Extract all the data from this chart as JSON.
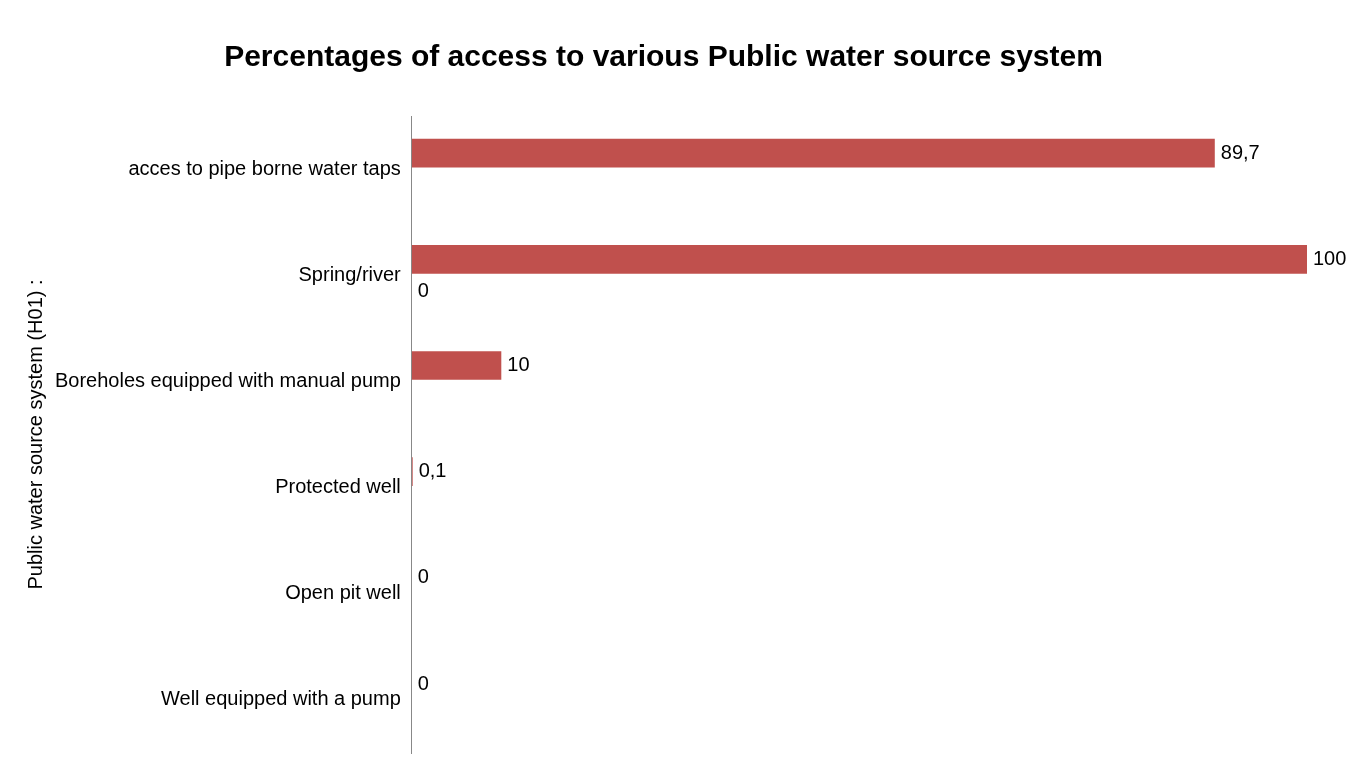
{
  "chart_data": {
    "type": "bar",
    "orientation": "horizontal",
    "title": "Percentages of access to various Public water source system",
    "ylabel": "Public water source system (H01) :",
    "categories": [
      "acces to pipe borne water taps",
      "Spring/river",
      "Boreholes equipped with manual pump",
      "Protected well",
      "Open pit well",
      "Well equipped with a pump"
    ],
    "series": [
      {
        "color": "#c0504d",
        "values": [
          89.7,
          100,
          10,
          0.1,
          0,
          0
        ],
        "value_labels": [
          "89,7",
          "100",
          "10",
          "0,1",
          "0",
          "0"
        ]
      },
      {
        "color": "#4f81bd",
        "values": [
          null,
          0,
          null,
          null,
          null,
          null
        ],
        "value_labels": [
          null,
          "0",
          null,
          null,
          null,
          null
        ]
      }
    ],
    "grid": false,
    "legend": false
  }
}
